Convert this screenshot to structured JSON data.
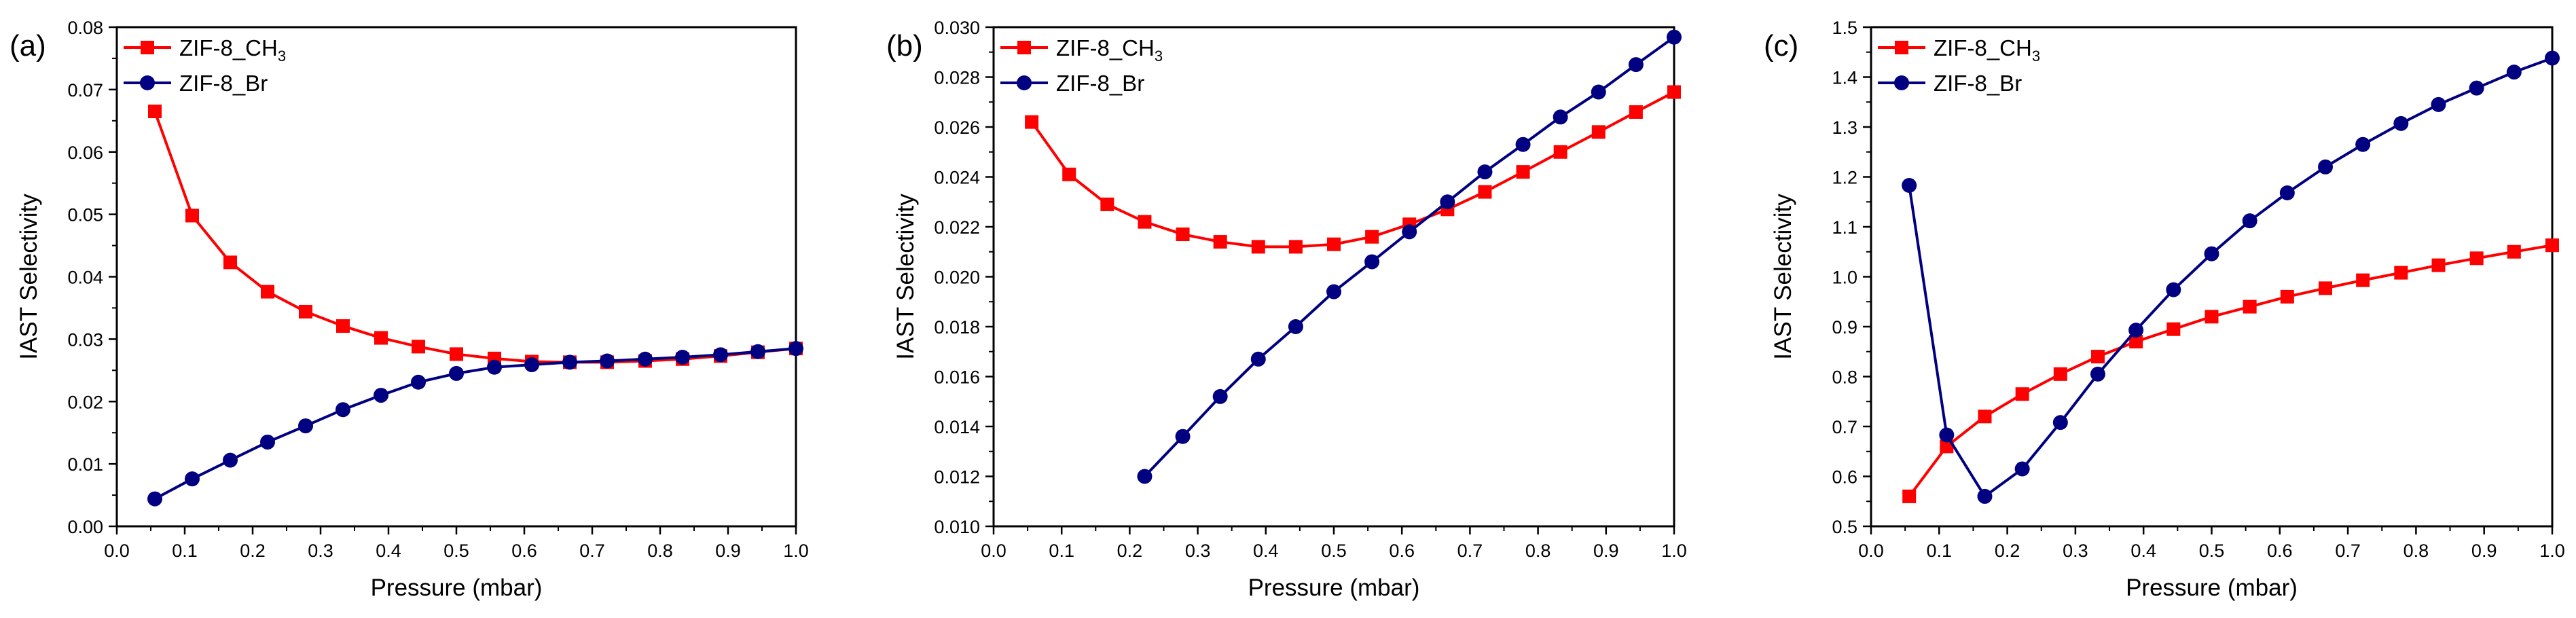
{
  "chart_data": [
    {
      "panel_label": "(a)",
      "type": "line",
      "xlabel": "Pressure (mbar)",
      "ylabel": "IAST Selectivity",
      "xlim": [
        0.0,
        1.0
      ],
      "ylim": [
        0.0,
        0.08
      ],
      "xticks": [
        "0.0",
        "0.1",
        "0.2",
        "0.3",
        "0.4",
        "0.5",
        "0.6",
        "0.7",
        "0.8",
        "0.9",
        "1.0"
      ],
      "yticks": [
        "0.00",
        "0.01",
        "0.02",
        "0.03",
        "0.04",
        "0.05",
        "0.06",
        "0.07",
        "0.08"
      ],
      "legend_position": "top-left",
      "series": [
        {
          "name": "ZIF-8_CH3",
          "legend_main": "ZIF-8_CH",
          "legend_sub": "3",
          "color": "#ff0000",
          "marker": "square",
          "x": [
            0.056,
            0.111,
            0.167,
            0.222,
            0.278,
            0.333,
            0.389,
            0.444,
            0.5,
            0.556,
            0.611,
            0.667,
            0.722,
            0.778,
            0.833,
            0.889,
            0.944,
            1.0
          ],
          "y": [
            0.0665,
            0.0498,
            0.0423,
            0.0376,
            0.0344,
            0.0321,
            0.0302,
            0.0288,
            0.0276,
            0.0269,
            0.0264,
            0.0263,
            0.0263,
            0.0265,
            0.0268,
            0.0273,
            0.0279,
            0.0285
          ]
        },
        {
          "name": "ZIF-8_Br",
          "legend_main": "ZIF-8_Br",
          "legend_sub": "",
          "color": "#000080",
          "marker": "circle",
          "x": [
            0.056,
            0.111,
            0.167,
            0.222,
            0.278,
            0.333,
            0.389,
            0.444,
            0.5,
            0.556,
            0.611,
            0.667,
            0.722,
            0.778,
            0.833,
            0.889,
            0.944,
            1.0
          ],
          "y": [
            0.0044,
            0.0076,
            0.0106,
            0.0135,
            0.0161,
            0.0187,
            0.021,
            0.0231,
            0.0245,
            0.0255,
            0.0259,
            0.0263,
            0.0265,
            0.0268,
            0.0271,
            0.0275,
            0.028,
            0.0285
          ]
        }
      ]
    },
    {
      "panel_label": "(b)",
      "type": "line",
      "xlabel": "Pressure (mbar)",
      "ylabel": "IAST Selectivity",
      "xlim": [
        0.0,
        1.0
      ],
      "ylim": [
        0.01,
        0.03
      ],
      "xticks": [
        "0.0",
        "0.1",
        "0.2",
        "0.3",
        "0.4",
        "0.5",
        "0.6",
        "0.7",
        "0.8",
        "0.9",
        "1.0"
      ],
      "yticks": [
        "0.010",
        "0.012",
        "0.014",
        "0.016",
        "0.018",
        "0.020",
        "0.022",
        "0.024",
        "0.026",
        "0.028",
        "0.030"
      ],
      "legend_position": "top-left",
      "series": [
        {
          "name": "ZIF-8_CH3",
          "legend_main": "ZIF-8_CH",
          "legend_sub": "3",
          "color": "#ff0000",
          "marker": "square",
          "x": [
            0.056,
            0.111,
            0.167,
            0.222,
            0.278,
            0.333,
            0.389,
            0.444,
            0.5,
            0.556,
            0.611,
            0.667,
            0.722,
            0.778,
            0.833,
            0.889,
            0.944,
            1.0
          ],
          "y": [
            0.0262,
            0.0241,
            0.0229,
            0.0222,
            0.0217,
            0.0214,
            0.0212,
            0.0212,
            0.0213,
            0.0216,
            0.0221,
            0.0227,
            0.0234,
            0.0242,
            0.025,
            0.0258,
            0.0266,
            0.0274
          ]
        },
        {
          "name": "ZIF-8_Br",
          "legend_main": "ZIF-8_Br",
          "legend_sub": "",
          "color": "#000080",
          "marker": "circle",
          "x": [
            0.222,
            0.278,
            0.333,
            0.389,
            0.444,
            0.5,
            0.556,
            0.611,
            0.667,
            0.722,
            0.778,
            0.833,
            0.889,
            0.944,
            1.0
          ],
          "y": [
            0.012,
            0.0136,
            0.0152,
            0.0167,
            0.018,
            0.0194,
            0.0206,
            0.0218,
            0.023,
            0.0242,
            0.0253,
            0.0264,
            0.0274,
            0.0285,
            0.0296
          ]
        }
      ]
    },
    {
      "panel_label": "(c)",
      "type": "line",
      "xlabel": "Pressure (mbar)",
      "ylabel": "IAST Selectivity",
      "xlim": [
        0.0,
        1.0
      ],
      "ylim": [
        0.5,
        1.5
      ],
      "xticks": [
        "0.0",
        "0.1",
        "0.2",
        "0.3",
        "0.4",
        "0.5",
        "0.6",
        "0.7",
        "0.8",
        "0.9",
        "1.0"
      ],
      "yticks": [
        "0.5",
        "0.6",
        "0.7",
        "0.8",
        "0.9",
        "1.0",
        "1.1",
        "1.2",
        "1.3",
        "1.4",
        "1.5"
      ],
      "legend_position": "top-left",
      "series": [
        {
          "name": "ZIF-8_CH3",
          "legend_main": "ZIF-8_CH",
          "legend_sub": "3",
          "color": "#ff0000",
          "marker": "square",
          "x": [
            0.056,
            0.111,
            0.167,
            0.222,
            0.278,
            0.333,
            0.389,
            0.444,
            0.5,
            0.556,
            0.611,
            0.667,
            0.722,
            0.778,
            0.833,
            0.889,
            0.944,
            1.0
          ],
          "y": [
            0.56,
            0.66,
            0.72,
            0.765,
            0.805,
            0.84,
            0.87,
            0.895,
            0.92,
            0.94,
            0.96,
            0.977,
            0.993,
            1.008,
            1.023,
            1.037,
            1.05,
            1.063
          ]
        },
        {
          "name": "ZIF-8_Br",
          "legend_main": "ZIF-8_Br",
          "legend_sub": "",
          "color": "#000080",
          "marker": "circle",
          "x": [
            0.056,
            0.111,
            0.167,
            0.222,
            0.278,
            0.333,
            0.389,
            0.444,
            0.5,
            0.556,
            0.611,
            0.667,
            0.722,
            0.778,
            0.833,
            0.889,
            0.944,
            1.0
          ],
          "y": [
            1.183,
            0.683,
            0.56,
            0.615,
            0.708,
            0.805,
            0.893,
            0.974,
            1.046,
            1.112,
            1.168,
            1.22,
            1.265,
            1.307,
            1.345,
            1.378,
            1.41,
            1.438
          ]
        }
      ]
    }
  ]
}
